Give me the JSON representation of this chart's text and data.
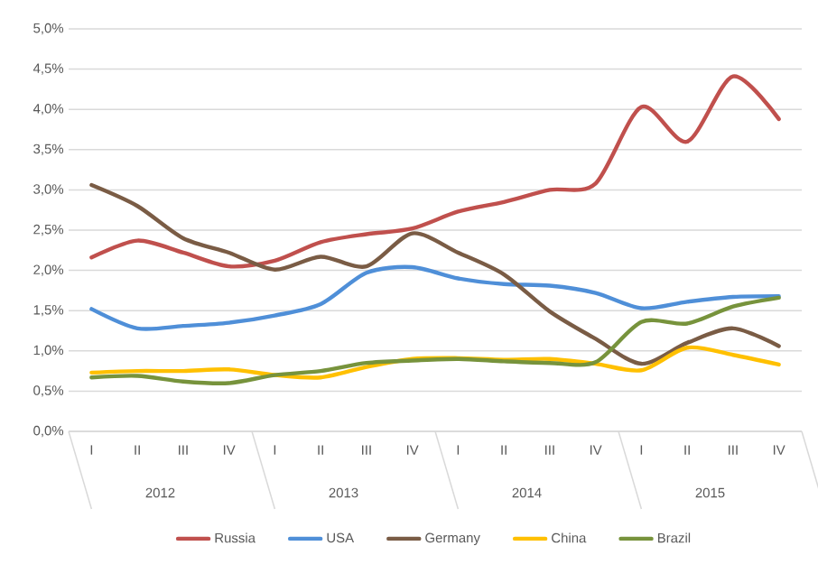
{
  "chart_data": {
    "type": "line",
    "categories": [
      "I",
      "II",
      "III",
      "IV",
      "I",
      "II",
      "III",
      "IV",
      "I",
      "II",
      "III",
      "IV",
      "I",
      "II",
      "III",
      "IV"
    ],
    "annotations": [
      "2012",
      "2013",
      "2014",
      "2015"
    ],
    "series": [
      {
        "name": "Russia",
        "color": "#c0504d",
        "values": [
          2.16,
          2.37,
          2.22,
          2.05,
          2.12,
          2.35,
          2.45,
          2.52,
          2.73,
          2.85,
          3.0,
          3.08,
          4.03,
          3.6,
          4.41,
          3.88
        ]
      },
      {
        "name": "USA",
        "color": "#4f8fd8",
        "values": [
          1.52,
          1.28,
          1.31,
          1.35,
          1.44,
          1.58,
          1.97,
          2.04,
          1.9,
          1.83,
          1.81,
          1.72,
          1.53,
          1.61,
          1.67,
          1.68
        ]
      },
      {
        "name": "Germany",
        "color": "#7a5c45",
        "values": [
          3.06,
          2.8,
          2.4,
          2.22,
          2.01,
          2.17,
          2.05,
          2.46,
          2.22,
          1.95,
          1.49,
          1.15,
          0.84,
          1.1,
          1.28,
          1.06
        ]
      },
      {
        "name": "China",
        "color": "#ffc000",
        "values": [
          0.73,
          0.75,
          0.75,
          0.77,
          0.7,
          0.67,
          0.8,
          0.9,
          0.91,
          0.89,
          0.9,
          0.84,
          0.76,
          1.04,
          0.95,
          0.83
        ]
      },
      {
        "name": "Brazil",
        "color": "#77933c",
        "values": [
          0.67,
          0.69,
          0.62,
          0.6,
          0.7,
          0.75,
          0.85,
          0.88,
          0.9,
          0.87,
          0.85,
          0.86,
          1.36,
          1.34,
          1.55,
          1.66
        ]
      }
    ],
    "ylim": [
      0,
      5
    ],
    "yticks": [
      {
        "value": 0,
        "label": "0,0%"
      },
      {
        "value": 0.5,
        "label": "0,5%"
      },
      {
        "value": 1,
        "label": "1,0%"
      },
      {
        "value": 1.5,
        "label": "1,5%"
      },
      {
        "value": 2,
        "label": "2,0%"
      },
      {
        "value": 2.5,
        "label": "2,5%"
      },
      {
        "value": 3,
        "label": "3,0%"
      },
      {
        "value": 3.5,
        "label": "3,5%"
      },
      {
        "value": 4,
        "label": "4,0%"
      },
      {
        "value": 4.5,
        "label": "4,5%"
      },
      {
        "value": 5,
        "label": "5,0%"
      }
    ],
    "grid": "y",
    "legend": "bottom",
    "marker": "none",
    "line_style": "solid"
  }
}
